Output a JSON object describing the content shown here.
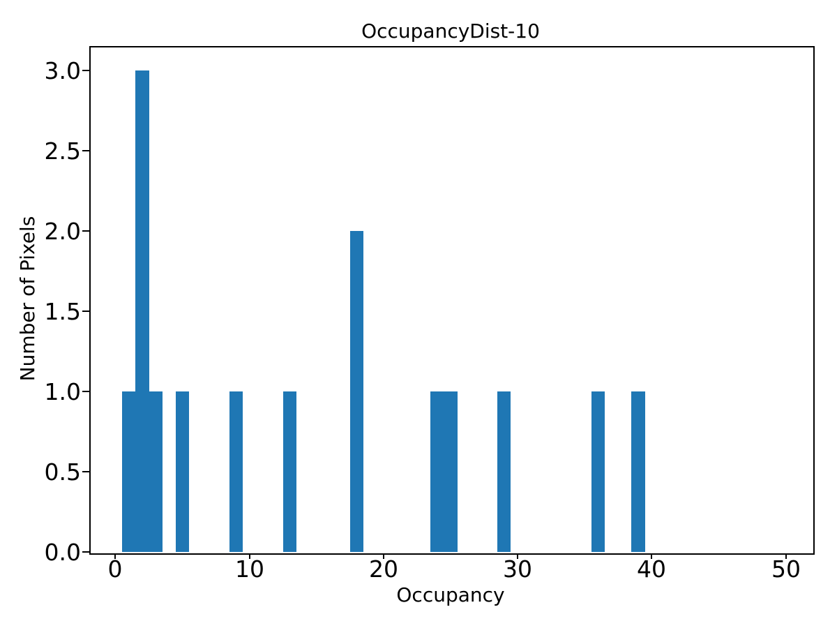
{
  "chart_data": {
    "type": "bar",
    "title": "OccupancyDist-10",
    "xlabel": "Occupancy",
    "ylabel": "Number of Pixels",
    "bar_color": "#1f77b4",
    "bar_width": 1,
    "bars": [
      {
        "x": 1,
        "count": 1
      },
      {
        "x": 2,
        "count": 3
      },
      {
        "x": 3,
        "count": 1
      },
      {
        "x": 5,
        "count": 1
      },
      {
        "x": 9,
        "count": 1
      },
      {
        "x": 13,
        "count": 1
      },
      {
        "x": 18,
        "count": 2
      },
      {
        "x": 24,
        "count": 1
      },
      {
        "x": 25,
        "count": 1
      },
      {
        "x": 29,
        "count": 1
      },
      {
        "x": 36,
        "count": 1
      },
      {
        "x": 39,
        "count": 1
      }
    ],
    "values": [
      1,
      2,
      2,
      2,
      3,
      5,
      9,
      13,
      18,
      18,
      24,
      25,
      29,
      36,
      39
    ],
    "total_pixels": 15,
    "xlim": [
      -1.95,
      51.95
    ],
    "ylim": [
      0,
      3.15
    ],
    "xticks": [
      0,
      10,
      20,
      30,
      40,
      50
    ],
    "xtick_labels": [
      "0",
      "10",
      "20",
      "30",
      "40",
      "50"
    ],
    "yticks": [
      0.0,
      0.5,
      1.0,
      1.5,
      2.0,
      2.5,
      3.0
    ],
    "ytick_labels": [
      "0.0",
      "0.5",
      "1.0",
      "1.5",
      "2.0",
      "2.5",
      "3.0"
    ],
    "grid": false,
    "legend": null,
    "background_color": "#ffffff",
    "spine_color": "#000000"
  }
}
